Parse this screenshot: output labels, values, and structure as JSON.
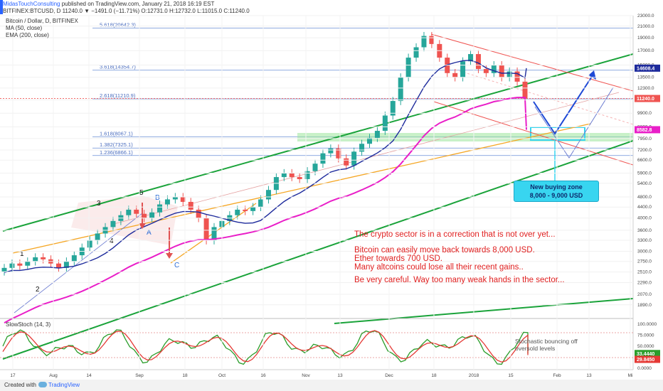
{
  "header": {
    "author": "MidasTouchConsulting",
    "published": "published on TradingView.com, January 21, 2018 16:19 EST",
    "ohlc": "BITFINEX:BTCUSD, D  11240.0 ▼ −1491.0 (−11.71%)  O:12731.0  H:12732.0  L:11015.0  C:11240.0"
  },
  "overlay": {
    "title": "Bitcoin / Dollar, D, BITFINEX",
    "ma": "MA (50, close)",
    "ema": "EMA (200, close)"
  },
  "annotations": {
    "line1": "The crypto sector is in a correction that is not over yet...",
    "line2": "Bitcoin can easily move back towards 8,000 USD.",
    "line3": "Ether towards 700 USD.",
    "line4": "Many altcoins could lose all their recent gains..",
    "line5": "Be very careful. Way too many weak hands in the sector...",
    "callout_line1": "New buying zone",
    "callout_line2": "8,000 - 9,000 USD",
    "stoch_note_1": "Stochastic bouncing off",
    "stoch_note_2": "oversold levels"
  },
  "stoch_label": "SlowStoch (14, 3)",
  "footer": {
    "created_with": "Created with",
    "brand": "TradingView"
  },
  "colors": {
    "up_candle": "#26a69a",
    "down_candle": "#ef5350",
    "ma50": "#1e2b9c",
    "ema200": "#e91ec8",
    "channel": "#1aa33a",
    "fib": "#4a6dbf",
    "annotation": "#e02020"
  },
  "chart_data": {
    "type": "candlestick",
    "symbol": "BITFINEX:BTCUSD",
    "timeframe": "D",
    "yscale": "log",
    "ylim": [
      1700,
      23000
    ],
    "y_ticks": [
      "23000.0",
      "21000.0",
      "19000.0",
      "17000.0",
      "15000.0",
      "13500.0",
      "12300.0",
      "11100.0",
      "9900.0",
      "8800.0",
      "7950.0",
      "7200.0",
      "6600.0",
      "5900.0",
      "5400.0",
      "4800.0",
      "4400.0",
      "4000.0",
      "3600.0",
      "3300.0",
      "3000.0",
      "2750.0",
      "2510.0",
      "2290.0",
      "2070.0",
      "1890.0"
    ],
    "x_ticks": [
      "17",
      "Aug",
      "14",
      "Sep",
      "18",
      "Oct",
      "16",
      "Nov",
      "13",
      "Dec",
      "18",
      "2018",
      "15",
      "Feb",
      "13",
      "Mi"
    ],
    "price_badges": [
      {
        "label": "14608.4",
        "value": 14608.4,
        "color": "#1e2b9c"
      },
      {
        "label": "11240.0",
        "value": 11240.0,
        "color": "#ef5350"
      },
      {
        "label": "8582.8",
        "value": 8582.8,
        "color": "#e91ec8"
      }
    ],
    "fib_levels": [
      {
        "label": "5.618(20642.3)",
        "value": 20642.3
      },
      {
        "label": "3.618(14354.7)",
        "value": 14354.7
      },
      {
        "label": "2.618(11210.9)",
        "value": 11210.9
      },
      {
        "label": "1.618(8067.1)",
        "value": 8067.1
      },
      {
        "label": "1.382(7325.1)",
        "value": 7325.1
      },
      {
        "label": "1.236(6866.1)",
        "value": 6866.1
      }
    ],
    "wave_labels": [
      "1",
      "2",
      "3",
      "4",
      "5",
      "A",
      "B",
      "C"
    ],
    "series": [
      {
        "name": "MA (50, close)",
        "last": 14608.4
      },
      {
        "name": "EMA (200, close)",
        "last": 8582.8
      }
    ],
    "close_approx": [
      2600,
      2700,
      2650,
      2750,
      2850,
      2800,
      2700,
      2600,
      2750,
      2900,
      3100,
      3300,
      3500,
      3700,
      3900,
      4100,
      4300,
      4150,
      4000,
      4200,
      4500,
      4700,
      4800,
      4600,
      4300,
      4000,
      3300,
      3700,
      3900,
      4100,
      4300,
      4250,
      4400,
      4700,
      5100,
      5700,
      5900,
      5700,
      5600,
      6000,
      6400,
      7000,
      7300,
      6700,
      6300,
      7100,
      7600,
      8000,
      8500,
      9700,
      11000,
      13500,
      16000,
      17500,
      19300,
      18000,
      16000,
      14000,
      13500,
      15500,
      16500,
      14500,
      14000,
      15000,
      13500,
      14200,
      13000,
      11240
    ],
    "stoch_ylim": [
      0,
      100
    ],
    "stoch_ticks": [
      "100.0000",
      "75.0000",
      "50.0000",
      "25.0000",
      "0.0000"
    ],
    "stoch_last": {
      "k": 33.444,
      "d": 29.845,
      "k_label": "33.4440",
      "d_label": "29.8450"
    }
  }
}
